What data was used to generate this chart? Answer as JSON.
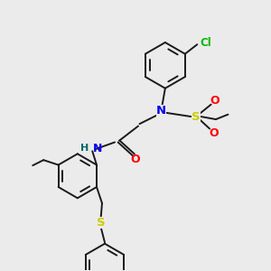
{
  "background_color": "#ebebeb",
  "bond_color": "#1a1a1a",
  "atom_colors": {
    "N": "#0000ee",
    "O": "#ff0000",
    "S_sulfonyl": "#cccc00",
    "S_thio": "#cccc00",
    "Cl": "#00bb00",
    "C": "#1a1a1a",
    "H": "#006666"
  },
  "figsize": [
    3.0,
    3.0
  ],
  "dpi": 100
}
